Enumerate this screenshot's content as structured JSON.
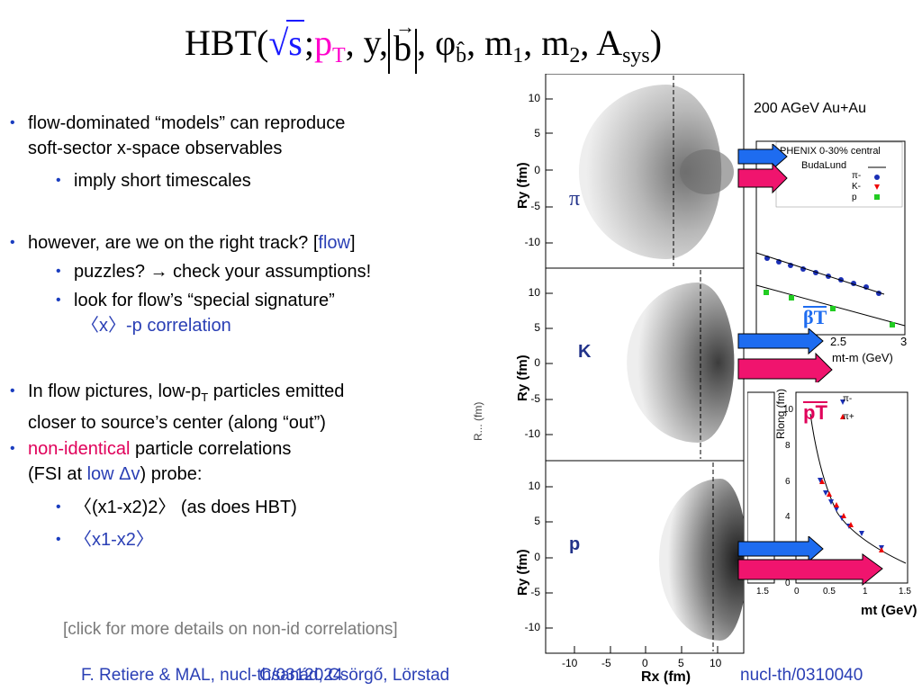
{
  "title": {
    "hbt": "HBT(",
    "sqrt_s": "s",
    "semicolon": ";",
    "pT_p": "p",
    "pT_sub": "T",
    "y": ", y,",
    "b": "b",
    "phi": ", φ",
    "phi_sub": "b̂",
    "m1": ", m",
    "m1_sub": "1",
    "m2": ", m",
    "m2_sub": "2",
    "A": ", A",
    "A_sub": "sys",
    "close": ")"
  },
  "bullets": {
    "b1_line1": "flow-dominated “models” can reproduce",
    "b1_line2": "soft-sector x-space observables",
    "b1_sub1": "imply short timescales",
    "b2_line1": "however, are we on the right track? [",
    "b2_link": "flow",
    "b2_close": "]",
    "b2_sub1": "puzzles? → check your assumptions!",
    "b2_sub2": "look for flow’s “special signature”",
    "b2_sub2_line2": "〈x〉-p correlation",
    "b3_line1a": "In flow pictures, low-p",
    "b3_line1_sub": "T",
    "b3_line1b": " particles emitted",
    "b3_line2": "closer to source’s center (along “out”)",
    "b4_red": "non-identical",
    "b4_rest": " particle correlations",
    "b4_line2a": "(FSI at ",
    "b4_line2_blue": "low Δv",
    "b4_line2b": ") probe:",
    "b4_sub1": "〈(x1-x2)2〉 (as does HBT)",
    "b4_sub2": "〈x1-x2〉"
  },
  "click_text": "[click for more details on non-id correlations]",
  "footer": {
    "left": "F. Retiere & MAL, nucl-th/0312024",
    "middle": "Csanád, Csörgő, Lörstad",
    "right": "nucl-th/0310040"
  },
  "plots": {
    "ylabel": "Ry (fm)",
    "xlabel": "Rx (fm)",
    "yticks": [
      "10",
      "5",
      "0",
      "-5",
      "-10"
    ],
    "xticks": [
      "-10",
      "-5",
      "0",
      "5",
      "10"
    ],
    "panels": [
      {
        "label": "π"
      },
      {
        "label": "K"
      },
      {
        "label": "p"
      }
    ]
  },
  "right_plot1": {
    "heading": "200 AGeV Au+Au",
    "legend_header": "PHENIX 0-30% central",
    "legend_model": "BudaLund",
    "legend_items": [
      "π-",
      "K-",
      "p"
    ],
    "xticks": [
      "2.5",
      "3"
    ],
    "xlabel": "mt-m (GeV)",
    "beta_label": "βT"
  },
  "right_plot2": {
    "ylabel": "Rlong (fm)",
    "xlabel": "mt (GeV)",
    "yticks": [
      "10",
      "8",
      "6",
      "4",
      "2",
      "0"
    ],
    "xticks": [
      "0",
      "0.5",
      "1",
      "1.5"
    ],
    "legend_items": [
      "π-",
      "π+"
    ],
    "pT_label": "pT",
    "left_tick": "1.5",
    "left_ylabel": "R... (fm)"
  },
  "colors": {
    "accent_blue": "#2a3fb5",
    "red": "#e0005a",
    "arrow_blue": "#1e6cf0",
    "arrow_pink": "#f0146e"
  }
}
